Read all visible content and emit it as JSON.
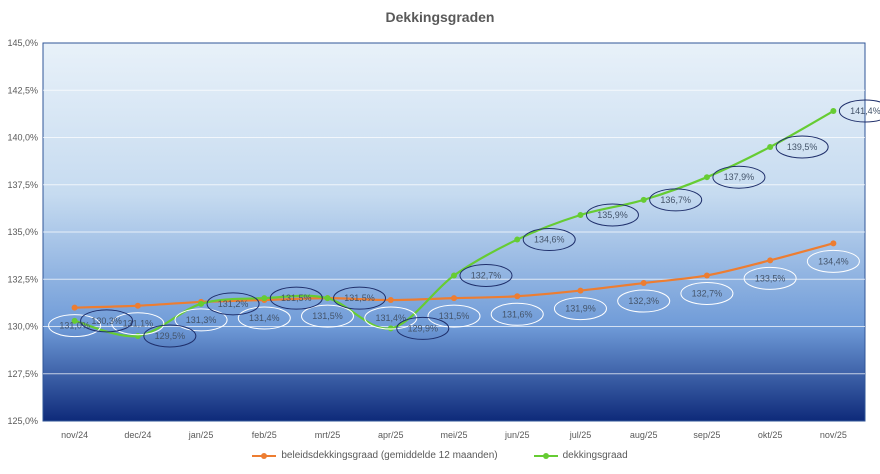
{
  "chart_data": {
    "type": "line",
    "title": "Dekkingsgraden",
    "categories": [
      "nov/24",
      "dec/24",
      "jan/25",
      "feb/25",
      "mrt/25",
      "apr/25",
      "mei/25",
      "jun/25",
      "jul/25",
      "aug/25",
      "sep/25",
      "okt/25",
      "nov/25"
    ],
    "ylim": [
      125,
      145
    ],
    "yticks": [
      "125,0%",
      "127,5%",
      "130,0%",
      "132,5%",
      "135,0%",
      "137,5%",
      "140,0%",
      "142,5%",
      "145,0%"
    ],
    "grid": true,
    "legend_position": "bottom",
    "series": [
      {
        "name": "beleidsdekkingsgraad (gemiddelde 12 maanden)",
        "color": "#ED7D31",
        "values": [
          131.0,
          131.1,
          131.3,
          131.4,
          131.5,
          131.4,
          131.5,
          131.6,
          131.9,
          132.3,
          132.7,
          133.5,
          134.4
        ],
        "labels": [
          "131,0%",
          "131,1%",
          "131,3%",
          "131,4%",
          "131,5%",
          "131,4%",
          "131,5%",
          "131,6%",
          "131,9%",
          "132,3%",
          "132,7%",
          "133,5%",
          "134,4%"
        ]
      },
      {
        "name": "dekkingsgraad",
        "color": "#66CC33",
        "values": [
          130.3,
          129.5,
          131.2,
          131.5,
          131.5,
          129.9,
          132.7,
          134.6,
          135.9,
          136.7,
          137.9,
          139.5,
          141.4
        ],
        "labels": [
          "130,3%",
          "129,5%",
          "131,2%",
          "131,5%",
          "131,5%",
          "129,9%",
          "132,7%",
          "134,6%",
          "135,9%",
          "136,7%",
          "137,9%",
          "139,5%",
          "141,4%"
        ]
      }
    ]
  }
}
